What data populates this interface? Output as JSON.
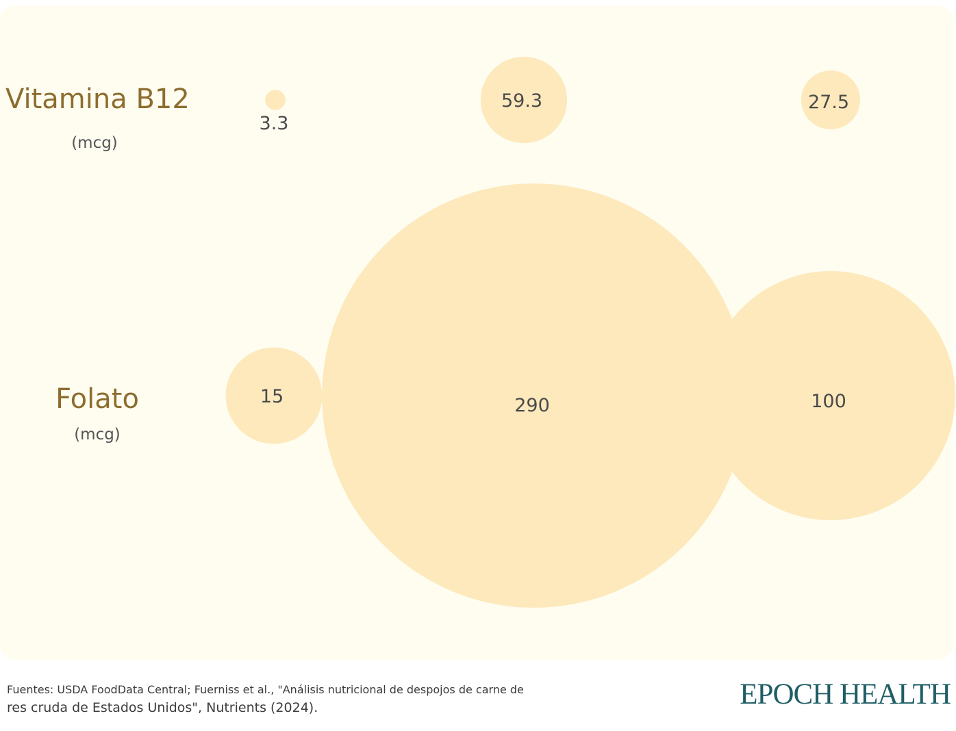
{
  "chart_data": {
    "type": "bubble",
    "rows": [
      {
        "name": "Vitamina B12",
        "unit": "(mcg)",
        "values": [
          3.3,
          59.3,
          27.5
        ],
        "labels": [
          "3.3",
          "59.3",
          "27.5"
        ]
      },
      {
        "name": "Folato",
        "unit": "(mcg)",
        "values": [
          15,
          290,
          100
        ],
        "labels": [
          "15",
          "290",
          "100"
        ]
      }
    ],
    "colors": {
      "bubble": "#fde9bc",
      "panel": "#fefdf0",
      "title": "#8d6d2f",
      "value_text": "#4a4a4a"
    }
  },
  "footer": {
    "source_line1": "Fuentes: USDA FoodData Central; Fuerniss et al., \"Análisis nutricional de despojos de carne de",
    "source_line2": "res cruda de Estados Unidos\", Nutrients (2024).",
    "brand": "EPOCH HEALTH"
  }
}
